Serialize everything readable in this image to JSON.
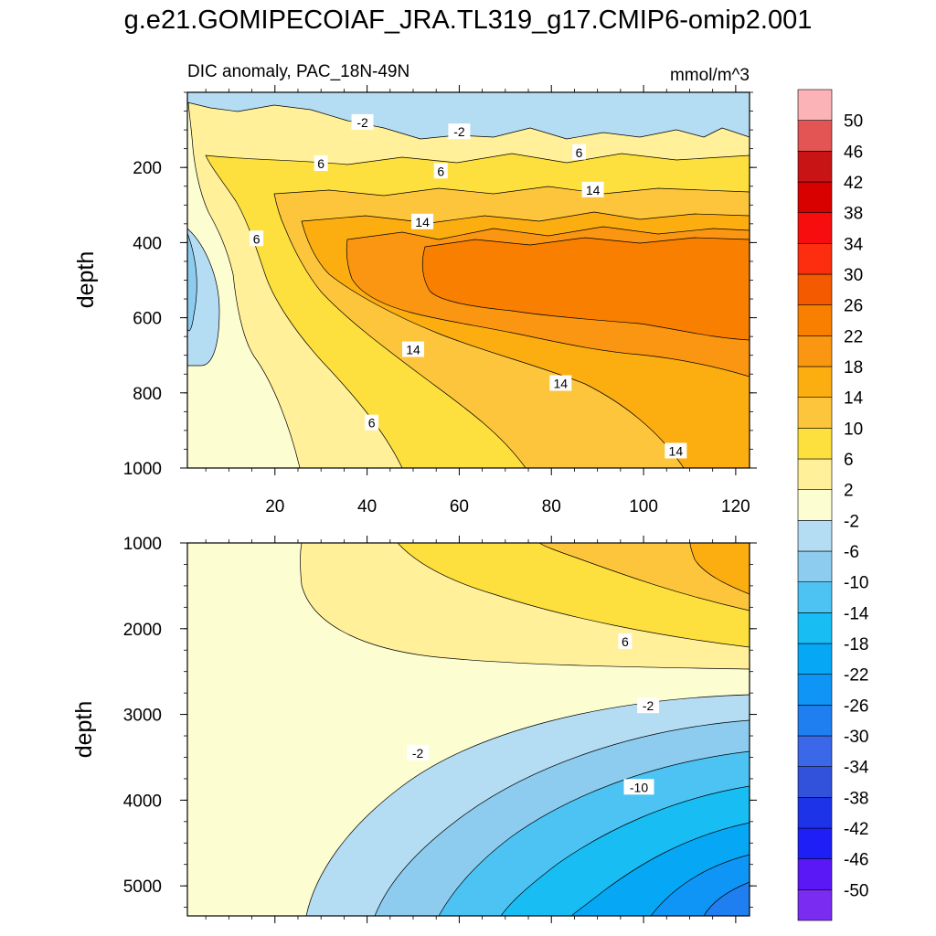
{
  "title": "g.e21.GOMIPECOIAF_JRA.TL319_g17.CMIP6-omip2.001",
  "chart_data": {
    "type": "contour",
    "variable": "DIC anomaly",
    "subtitle_left": "DIC anomaly, PAC_18N-49N",
    "units": "mmol/m^3",
    "xlabel": "",
    "ylabel": "depth",
    "x_range": [
      1,
      123
    ],
    "x_ticks": [
      20,
      40,
      60,
      80,
      100,
      120
    ],
    "colorbar": {
      "levels": [
        -50,
        -46,
        -42,
        -38,
        -34,
        -30,
        -26,
        -22,
        -18,
        -14,
        -10,
        -6,
        -2,
        2,
        6,
        10,
        14,
        18,
        22,
        26,
        30,
        34,
        38,
        42,
        46,
        50
      ],
      "colors": [
        "#7a2cf0",
        "#5a18f6",
        "#1e1ef6",
        "#1c33e8",
        "#3352dc",
        "#3a68e8",
        "#1f7ff0",
        "#0f95f5",
        "#06a8f6",
        "#18bdf4",
        "#4cc3f2",
        "#8dccee",
        "#b4dcf2",
        "#fdfdd2",
        "#fff099",
        "#fde03e",
        "#fdc53c",
        "#fcad10",
        "#fa9612",
        "#f87f00",
        "#f45a00",
        "#fc2e0f",
        "#f70d0d",
        "#d90000",
        "#c81414",
        "#e35555",
        "#fbb3b7"
      ]
    },
    "panels": [
      {
        "name": "upper-ocean",
        "y_range": [
          0,
          1000
        ],
        "y_ticks": [
          200,
          400,
          600,
          800,
          1000
        ],
        "contour_labels": [
          {
            "text": "-2",
            "x": 39,
            "y": 80
          },
          {
            "text": "-2",
            "x": 60,
            "y": 105
          },
          {
            "text": "6",
            "x": 30,
            "y": 190
          },
          {
            "text": "6",
            "x": 56,
            "y": 210
          },
          {
            "text": "6",
            "x": 86,
            "y": 160
          },
          {
            "text": "14",
            "x": 52,
            "y": 345
          },
          {
            "text": "14",
            "x": 89,
            "y": 260
          },
          {
            "text": "6",
            "x": 16,
            "y": 390
          },
          {
            "text": "14",
            "x": 50,
            "y": 685
          },
          {
            "text": "14",
            "x": 82,
            "y": 775
          },
          {
            "text": "6",
            "x": 41,
            "y": 880
          },
          {
            "text": "14",
            "x": 107,
            "y": 955
          }
        ]
      },
      {
        "name": "deep-ocean",
        "y_range": [
          1000,
          5350
        ],
        "y_ticks": [
          1000,
          2000,
          3000,
          4000,
          5000
        ],
        "contour_labels": [
          {
            "text": "6",
            "x": 96,
            "y": 2150
          },
          {
            "text": "-2",
            "x": 101,
            "y": 2900
          },
          {
            "text": "-2",
            "x": 51,
            "y": 3450
          },
          {
            "text": "-10",
            "x": 99,
            "y": 3850
          }
        ]
      }
    ]
  }
}
